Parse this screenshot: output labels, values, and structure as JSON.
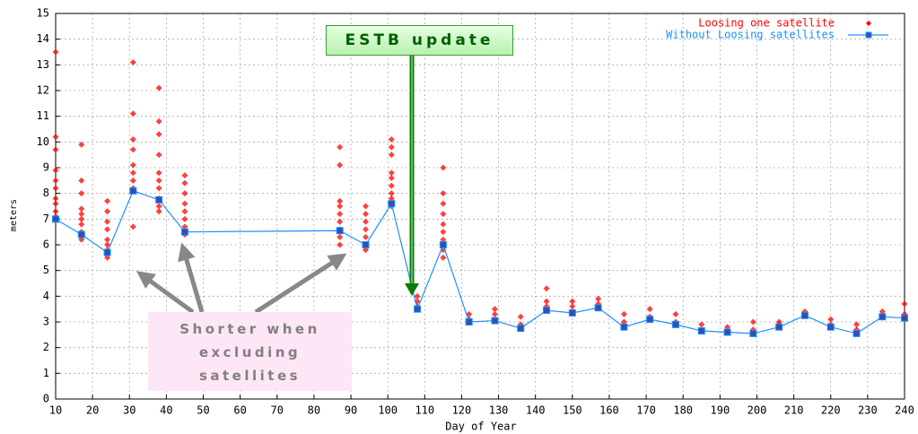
{
  "chart_data": {
    "type": "scatter-line",
    "x_label": "Day of Year",
    "y_label": "meters",
    "xlim": [
      10,
      240
    ],
    "ylim": [
      0,
      15
    ],
    "xticks": [
      10,
      20,
      30,
      40,
      50,
      60,
      70,
      80,
      90,
      100,
      110,
      120,
      130,
      140,
      150,
      160,
      170,
      180,
      190,
      200,
      210,
      220,
      230,
      240
    ],
    "yticks": [
      0,
      1,
      2,
      3,
      4,
      5,
      6,
      7,
      8,
      9,
      10,
      11,
      12,
      13,
      14,
      15
    ],
    "grid": true,
    "legend": "top-right",
    "series": [
      {
        "name": "Loosing one satellite",
        "color": "#ff0000",
        "kind": "scatter",
        "x": [
          10,
          10,
          10,
          10,
          10,
          10,
          10,
          10,
          10,
          10,
          17,
          17,
          17,
          17,
          17,
          17,
          17,
          17,
          17,
          24,
          24,
          24,
          24,
          24,
          24,
          24,
          24,
          31,
          31,
          31,
          31,
          31,
          31,
          31,
          31,
          31,
          38,
          38,
          38,
          38,
          38,
          38,
          38,
          38,
          38,
          38,
          45,
          45,
          45,
          45,
          45,
          45,
          45,
          45,
          87,
          87,
          87,
          87,
          87,
          87,
          87,
          87,
          87,
          94,
          94,
          94,
          94,
          94,
          94,
          94,
          101,
          101,
          101,
          101,
          101,
          101,
          101,
          101,
          101,
          108,
          108,
          108,
          115,
          115,
          115,
          115,
          115,
          115,
          115,
          115,
          115,
          122,
          122,
          129,
          129,
          136,
          136,
          143,
          143,
          143,
          150,
          150,
          150,
          157,
          157,
          164,
          164,
          164,
          171,
          171,
          178,
          178,
          185,
          192,
          199,
          199,
          206,
          206,
          213,
          220,
          220,
          227,
          227,
          234,
          240,
          240
        ],
        "values": [
          13.5,
          10.2,
          9.7,
          8.9,
          8.5,
          8.2,
          7.8,
          7.6,
          7.3,
          7.1,
          9.9,
          8.5,
          8.0,
          7.4,
          7.2,
          7.0,
          6.8,
          6.5,
          6.2,
          7.7,
          7.3,
          6.9,
          6.6,
          6.2,
          6.0,
          5.8,
          5.5,
          13.1,
          11.1,
          10.1,
          9.7,
          9.1,
          8.8,
          8.5,
          8.2,
          6.7,
          12.1,
          10.8,
          10.3,
          9.5,
          8.8,
          8.5,
          8.2,
          7.8,
          7.5,
          7.3,
          8.7,
          8.4,
          8.0,
          7.6,
          7.3,
          7.0,
          6.7,
          6.4,
          9.8,
          9.1,
          7.7,
          7.5,
          7.2,
          6.9,
          6.6,
          6.3,
          6.0,
          7.5,
          7.2,
          6.9,
          6.6,
          6.3,
          6.0,
          5.8,
          10.1,
          9.8,
          9.5,
          8.8,
          8.6,
          8.3,
          8.0,
          7.8,
          7.5,
          4.0,
          3.8,
          3.6,
          9.0,
          8.0,
          7.6,
          7.2,
          6.8,
          6.5,
          6.2,
          5.8,
          5.5,
          3.3,
          3.1,
          3.5,
          3.3,
          3.2,
          2.9,
          4.3,
          3.8,
          3.6,
          3.8,
          3.6,
          3.4,
          3.9,
          3.7,
          3.3,
          3.0,
          2.8,
          3.5,
          3.2,
          3.3,
          3.0,
          2.9,
          2.8,
          3.0,
          2.7,
          3.0,
          2.9,
          3.4,
          3.1,
          2.9,
          2.9,
          2.7,
          3.4,
          3.7,
          3.3
        ]
      },
      {
        "name": "Without Loosing satellites",
        "color": "#1e90ff",
        "marker_color": "#3050b0",
        "kind": "line",
        "x": [
          10,
          17,
          24,
          31,
          38,
          45,
          87,
          94,
          101,
          108,
          115,
          122,
          129,
          136,
          143,
          150,
          157,
          164,
          171,
          178,
          185,
          192,
          199,
          206,
          213,
          220,
          227,
          234,
          240
        ],
        "values": [
          7.0,
          6.4,
          5.7,
          8.1,
          7.75,
          6.5,
          6.55,
          6.0,
          7.6,
          3.5,
          6.0,
          3.0,
          3.05,
          2.75,
          3.45,
          3.35,
          3.55,
          2.8,
          3.1,
          2.9,
          2.65,
          2.6,
          2.55,
          2.8,
          3.25,
          2.8,
          2.55,
          3.2,
          3.15
        ]
      }
    ],
    "annotations": [
      {
        "text": "ESTB update"
      },
      {
        "text": "Shorter when excluding satellites"
      }
    ]
  }
}
